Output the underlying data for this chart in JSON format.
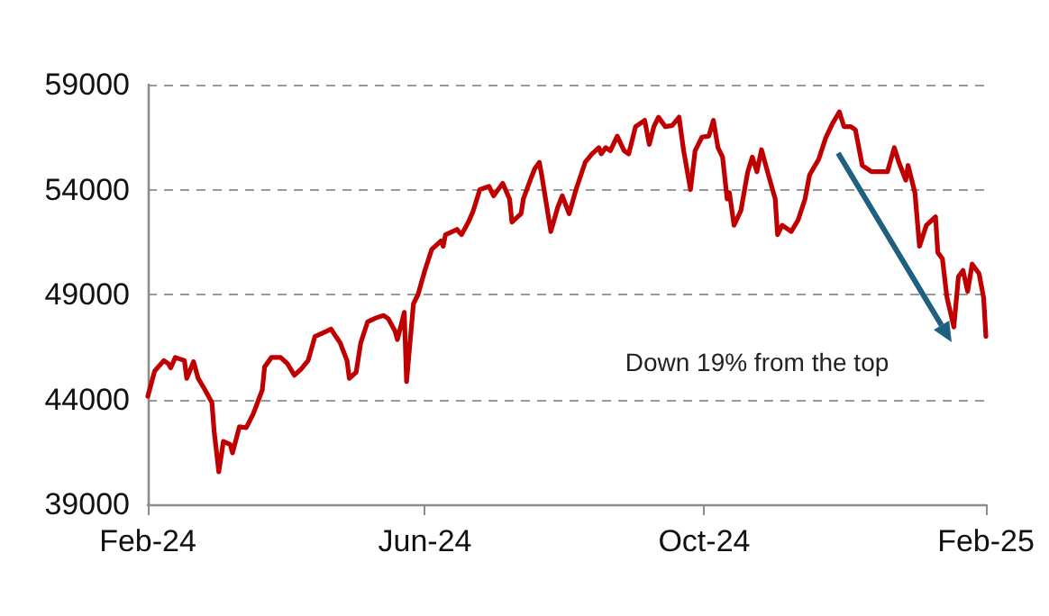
{
  "chart_data": {
    "type": "line",
    "x": [
      "2024-02-01",
      "2024-02-04",
      "2024-02-08",
      "2024-02-10",
      "2024-02-11",
      "2024-02-13",
      "2024-02-17",
      "2024-02-18",
      "2024-02-21",
      "2024-02-23",
      "2024-02-26",
      "2024-02-29",
      "2024-03-01",
      "2024-03-03",
      "2024-03-05",
      "2024-03-08",
      "2024-03-09",
      "2024-03-12",
      "2024-03-15",
      "2024-03-18",
      "2024-03-22",
      "2024-03-23",
      "2024-03-26",
      "2024-03-30",
      "2024-04-02",
      "2024-04-05",
      "2024-04-08",
      "2024-04-11",
      "2024-04-14",
      "2024-04-19",
      "2024-04-21",
      "2024-04-25",
      "2024-04-28",
      "2024-04-29",
      "2024-05-02",
      "2024-05-04",
      "2024-05-07",
      "2024-05-11",
      "2024-05-14",
      "2024-05-16",
      "2024-05-19",
      "2024-05-20",
      "2024-05-23",
      "2024-05-24",
      "2024-05-27",
      "2024-05-29",
      "2024-06-01",
      "2024-06-04",
      "2024-06-08",
      "2024-06-09",
      "2024-06-10",
      "2024-06-15",
      "2024-06-17",
      "2024-06-20",
      "2024-06-22",
      "2024-06-25",
      "2024-06-29",
      "2024-07-01",
      "2024-07-05",
      "2024-07-08",
      "2024-07-09",
      "2024-07-12",
      "2024-07-13",
      "2024-07-14",
      "2024-07-17",
      "2024-07-19",
      "2024-07-21",
      "2024-07-22",
      "2024-07-26",
      "2024-07-29",
      "2024-07-31",
      "2024-08-03",
      "2024-08-06",
      "2024-08-10",
      "2024-08-13",
      "2024-08-16",
      "2024-08-17",
      "2024-08-19",
      "2024-08-21",
      "2024-08-24",
      "2024-08-27",
      "2024-08-29",
      "2024-09-01",
      "2024-09-05",
      "2024-09-07",
      "2024-09-09",
      "2024-09-11",
      "2024-09-14",
      "2024-09-17",
      "2024-09-20",
      "2024-09-22",
      "2024-09-25",
      "2024-09-27",
      "2024-09-30",
      "2024-10-03",
      "2024-10-05",
      "2024-10-07",
      "2024-10-09",
      "2024-10-11",
      "2024-10-12",
      "2024-10-14",
      "2024-10-17",
      "2024-10-20",
      "2024-10-22",
      "2024-10-24",
      "2024-10-26",
      "2024-10-29",
      "2024-11-01",
      "2024-11-02",
      "2024-11-04",
      "2024-11-08",
      "2024-11-11",
      "2024-11-14",
      "2024-11-16",
      "2024-11-20",
      "2024-11-23",
      "2024-11-26",
      "2024-11-29",
      "2024-12-01",
      "2024-12-04",
      "2024-12-06",
      "2024-12-09",
      "2024-12-13",
      "2024-12-17",
      "2024-12-20",
      "2024-12-23",
      "2024-12-25",
      "2024-12-28",
      "2024-12-29",
      "2025-01-01",
      "2025-01-03",
      "2025-01-06",
      "2025-01-10",
      "2025-01-11",
      "2025-01-13",
      "2025-01-15",
      "2025-01-18",
      "2025-01-20",
      "2025-01-22",
      "2025-01-24",
      "2025-01-26",
      "2025-01-29",
      "2025-01-31",
      "2025-02-01"
    ],
    "series": [
      {
        "color": "#c00000",
        "values": [
          44150,
          45350,
          45850,
          45700,
          45500,
          46000,
          45850,
          45000,
          45800,
          45000,
          44450,
          43850,
          42450,
          40550,
          42000,
          41850,
          41450,
          42700,
          42650,
          43300,
          44450,
          45550,
          46000,
          46000,
          45700,
          45150,
          45450,
          45850,
          47000,
          47250,
          47350,
          46700,
          45850,
          45000,
          45300,
          46700,
          47700,
          47900,
          48000,
          47850,
          47250,
          46850,
          48150,
          44850,
          48550,
          49000,
          50150,
          51150,
          51550,
          51300,
          51850,
          52100,
          51850,
          52450,
          52950,
          54000,
          54150,
          53700,
          54300,
          53550,
          52450,
          52750,
          52850,
          53550,
          54450,
          55000,
          55300,
          54700,
          52000,
          53150,
          53700,
          52850,
          54000,
          55300,
          55700,
          56000,
          55700,
          56000,
          55850,
          56550,
          55850,
          55700,
          57000,
          57300,
          56150,
          57000,
          57450,
          57000,
          57050,
          57450,
          55850,
          54000,
          55850,
          56500,
          56550,
          57300,
          56000,
          55550,
          53550,
          53850,
          52300,
          53000,
          54850,
          55550,
          54850,
          55900,
          54700,
          53550,
          51850,
          52300,
          52000,
          52550,
          53550,
          54700,
          55450,
          56450,
          57150,
          57700,
          57000,
          57000,
          56850,
          55150,
          54850,
          54850,
          54850,
          56000,
          55300,
          54450,
          55150,
          53850,
          51300,
          52300,
          52700,
          51000,
          50700,
          48850,
          47450,
          49850,
          50150,
          49150,
          50450,
          50000,
          48850,
          47000
        ]
      }
    ],
    "xlim": [
      "2024-02-01",
      "2025-02-01"
    ],
    "xticks": [
      {
        "value": "2024-02-01",
        "label": "Feb-24"
      },
      {
        "value": "2024-06-01",
        "label": "Jun-24"
      },
      {
        "value": "2024-10-01",
        "label": "Oct-24"
      },
      {
        "value": "2025-02-01",
        "label": "Feb-25"
      }
    ],
    "ylim": [
      39000,
      59000
    ],
    "yticks": [
      39000,
      44000,
      49000,
      54000,
      59000
    ],
    "grid": "y",
    "marker": "none",
    "line_style": "solid",
    "annotations": [
      "Down 19% from the top"
    ]
  }
}
